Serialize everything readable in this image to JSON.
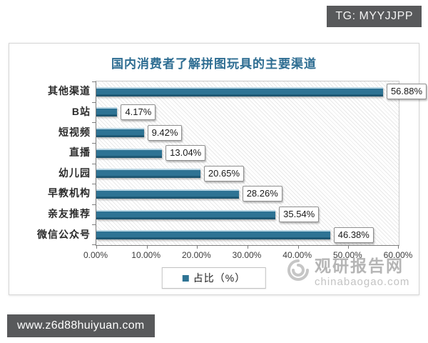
{
  "badges": {
    "tg": "TG: MYYJJPP",
    "site": "www.z6d88huiyuan.com"
  },
  "watermark": {
    "name": "观研报告网",
    "domain": "chinabaogao.com"
  },
  "chart_data": {
    "type": "bar",
    "orientation": "horizontal",
    "title": "国内消费者了解拼图玩具的主要渠道",
    "categories": [
      "其他渠道",
      "B站",
      "短视频",
      "直播",
      "幼儿园",
      "早教机构",
      "亲友推荐",
      "微信公众号"
    ],
    "values": [
      56.88,
      4.17,
      9.42,
      13.04,
      20.65,
      28.26,
      35.54,
      46.38
    ],
    "value_labels": [
      "56.88%",
      "4.17%",
      "9.42%",
      "13.04%",
      "20.65%",
      "28.26%",
      "35.54%",
      "46.38%"
    ],
    "x_ticks": [
      "0.00%",
      "10.00%",
      "20.00%",
      "30.00%",
      "40.00%",
      "50.00%",
      "60.00%"
    ],
    "xlim": [
      0,
      60
    ],
    "grid": false,
    "plot_background": "diagonal-hatch",
    "bar_color": "#2e7394",
    "title_color": "#2e6d92",
    "legend_position": "bottom-center",
    "legend": [
      "占比（%）"
    ]
  }
}
